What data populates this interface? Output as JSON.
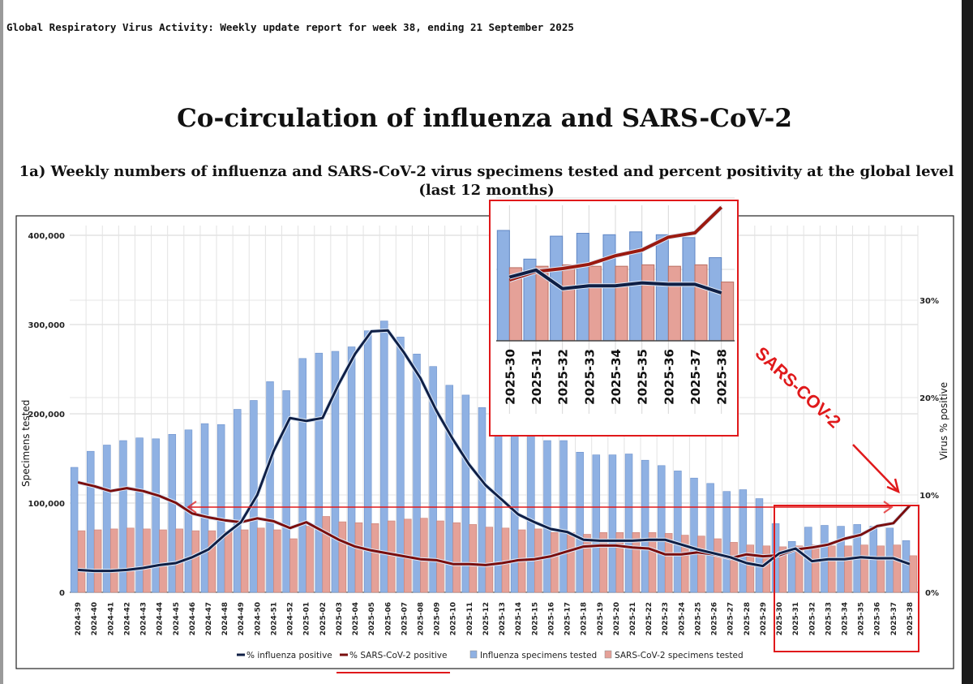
{
  "header": "Global Respiratory Virus Activity: Weekly update report for week 38, ending 21 September 2025",
  "title": "Co-circulation of influenza and SARS-CoV-2",
  "subtitle_line1": "1a) Weekly numbers of influenza and SARS-CoV-2 virus specimens tested and percent positivity at the global level",
  "subtitle_line2": "(last 12 months)",
  "annotation": "SARS-COV-2",
  "colors": {
    "flu_bar": "#8fb1e3",
    "sars_bar": "#e5a198",
    "flu_line": "#0f1f45",
    "sars_line": "#7a0e0e",
    "annot": "#e0191b"
  },
  "chart_data": {
    "type": "bar+line",
    "ylabel": "Specimens tested",
    "y2label": "Virus % positive",
    "ylim": [
      0,
      420000
    ],
    "y2lim": [
      0,
      38.5
    ],
    "yticks": [
      "0",
      "100,000",
      "200,000",
      "300,000",
      "400,000"
    ],
    "ytick_values": [
      0,
      100000,
      200000,
      300000,
      400000
    ],
    "y2ticks": [
      "0%",
      "10%",
      "20%",
      "30%"
    ],
    "y2tick_values": [
      0,
      10,
      20,
      30
    ],
    "legend": [
      "% influenza positive",
      "% SARS-CoV-2 positive",
      "Influenza specimens tested",
      "SARS-CoV-2 specimens tested"
    ],
    "legend_position": "bottom",
    "categories": [
      "2024-39",
      "2024-40",
      "2024-41",
      "2024-42",
      "2024-43",
      "2024-44",
      "2024-45",
      "2024-46",
      "2024-47",
      "2024-48",
      "2024-49",
      "2024-50",
      "2024-51",
      "2024-52",
      "2025-01",
      "2025-02",
      "2025-03",
      "2025-04",
      "2025-05",
      "2025-06",
      "2025-07",
      "2025-08",
      "2025-09",
      "2025-10",
      "2025-11",
      "2025-12",
      "2025-13",
      "2025-14",
      "2025-15",
      "2025-16",
      "2025-17",
      "2025-18",
      "2025-19",
      "2025-20",
      "2025-21",
      "2025-22",
      "2025-23",
      "2025-24",
      "2025-25",
      "2025-26",
      "2025-27",
      "2025-28",
      "2025-29",
      "2025-30",
      "2025-31",
      "2025-32",
      "2025-33",
      "2025-34",
      "2025-35",
      "2025-36",
      "2025-37",
      "2025-38"
    ],
    "series": [
      {
        "name": "Influenza specimens tested",
        "kind": "bar",
        "values": [
          140000,
          158000,
          165000,
          170000,
          173000,
          172000,
          177000,
          182000,
          189000,
          188000,
          205000,
          215000,
          236000,
          226000,
          262000,
          268000,
          270000,
          275000,
          293000,
          304000,
          286000,
          267000,
          253000,
          232000,
          221000,
          207000,
          197000,
          185000,
          178000,
          170000,
          170000,
          157000,
          154000,
          154000,
          155000,
          148000,
          142000,
          136000,
          128000,
          122000,
          113000,
          115000,
          105000,
          77000,
          57000,
          73000,
          75000,
          74000,
          76000,
          74000,
          72000,
          58000
        ]
      },
      {
        "name": "SARS-CoV-2 specimens tested",
        "kind": "bar",
        "values": [
          69000,
          70000,
          71000,
          72000,
          71000,
          70000,
          71000,
          69000,
          69000,
          68000,
          70000,
          72000,
          70000,
          60000,
          74000,
          85000,
          79000,
          78000,
          77000,
          80000,
          82000,
          83000,
          80000,
          78000,
          76000,
          73000,
          72000,
          70000,
          71000,
          67000,
          67000,
          65000,
          67000,
          67000,
          67000,
          67000,
          66000,
          64000,
          63000,
          60000,
          56000,
          53000,
          52000,
          51000,
          52000,
          53000,
          52000,
          52000,
          53000,
          52000,
          53000,
          41000
        ]
      },
      {
        "name": "% influenza positive",
        "kind": "line",
        "values": [
          2.3,
          2.2,
          2.2,
          2.3,
          2.5,
          2.8,
          3.0,
          3.6,
          4.4,
          5.9,
          7.2,
          10.0,
          14.5,
          17.9,
          17.6,
          17.9,
          21.4,
          24.5,
          26.8,
          26.9,
          24.6,
          22.0,
          18.6,
          15.7,
          13.1,
          11.0,
          9.5,
          8.0,
          7.2,
          6.5,
          6.2,
          5.4,
          5.3,
          5.3,
          5.3,
          5.4,
          5.4,
          4.9,
          4.4,
          4.0,
          3.6,
          3.0,
          2.7,
          4.0,
          4.5,
          3.2,
          3.4,
          3.4,
          3.6,
          3.5,
          3.5,
          2.9
        ]
      },
      {
        "name": "% SARS-CoV-2 positive",
        "kind": "line",
        "values": [
          11.3,
          10.9,
          10.4,
          10.7,
          10.4,
          9.9,
          9.2,
          8.1,
          7.7,
          7.4,
          7.2,
          7.6,
          7.3,
          6.6,
          7.2,
          6.3,
          5.4,
          4.7,
          4.3,
          4.0,
          3.7,
          3.4,
          3.3,
          2.9,
          2.9,
          2.8,
          3.0,
          3.3,
          3.4,
          3.7,
          4.2,
          4.7,
          4.8,
          4.8,
          4.6,
          4.5,
          3.9,
          3.9,
          4.1,
          3.9,
          3.5,
          3.9,
          3.7,
          3.8,
          4.4,
          4.6,
          4.9,
          5.5,
          5.9,
          6.8,
          7.1,
          8.9
        ]
      }
    ],
    "inset_range": [
      "2025-30",
      "2025-38"
    ]
  }
}
